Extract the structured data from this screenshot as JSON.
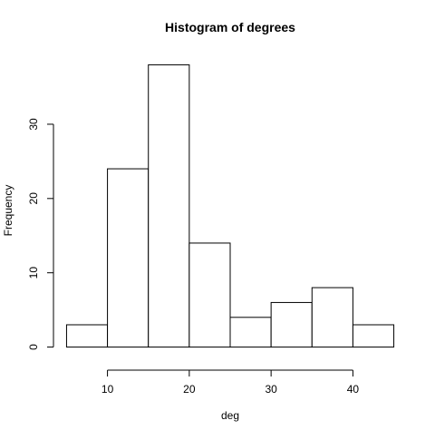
{
  "chart_data": {
    "type": "bar",
    "title": "Histogram of degrees",
    "xlabel": "deg",
    "ylabel": "Frequency",
    "bins": [
      {
        "start": 5,
        "end": 10,
        "count": 3
      },
      {
        "start": 10,
        "end": 15,
        "count": 24
      },
      {
        "start": 15,
        "end": 20,
        "count": 38
      },
      {
        "start": 20,
        "end": 25,
        "count": 14
      },
      {
        "start": 25,
        "end": 30,
        "count": 4
      },
      {
        "start": 30,
        "end": 35,
        "count": 6
      },
      {
        "start": 35,
        "end": 40,
        "count": 8
      },
      {
        "start": 40,
        "end": 45,
        "count": 3
      }
    ],
    "xlim": [
      5,
      45
    ],
    "ylim": [
      0,
      38
    ],
    "x_ticks": [
      10,
      20,
      30,
      40
    ],
    "y_ticks": [
      0,
      10,
      20,
      30
    ],
    "grid": false,
    "legend": "none"
  }
}
